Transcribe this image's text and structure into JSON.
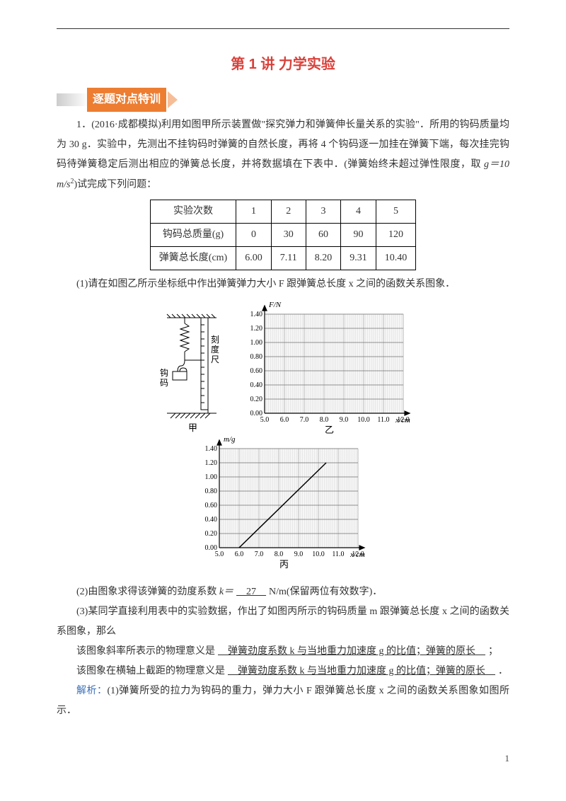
{
  "title": "第 1 讲  力学实验",
  "section": "逐题对点特训",
  "q1": {
    "num": "1．",
    "source": "(2016·成都模拟)",
    "text1": "利用如图甲所示装置做\"探究弹力和弹簧伸长量关系的实验\"．所用的钩码质量均为 30 g．实验中，先测出不挂钩码时弹簧的自然长度，再将 4 个钩码逐一加挂在弹簧下端，每次挂完钩码待弹簧稳定后测出相应的弹簧总长度，并将数据填在下表中．(弹簧始终未超过弹性限度，取 ",
    "g_expr": "g＝10 m/s",
    "text1b": ")试完成下列问题：",
    "table": {
      "headers": [
        "实验次数",
        "1",
        "2",
        "3",
        "4",
        "5"
      ],
      "row1": [
        "钩码总质量(g)",
        "0",
        "30",
        "60",
        "90",
        "120"
      ],
      "row2": [
        "弹簧总长度(cm)",
        "6.00",
        "7.11",
        "8.20",
        "9.31",
        "10.40"
      ]
    },
    "part1": "(1)请在如图乙所示坐标纸中作出弹簧弹力大小 F 跟弹簧总长度 x 之间的函数关系图象．",
    "fig_jia": "甲",
    "fig_yi": "乙",
    "fig_bing": "丙",
    "axis_y1": "F/N",
    "axis_y2": "m/g",
    "axis_x": "x/cm",
    "yticks": [
      "0.00",
      "0.20",
      "0.40",
      "0.60",
      "0.80",
      "1.00",
      "1.20",
      "1.40"
    ],
    "xticks": [
      "5.0",
      "6.0",
      "7.0",
      "8.0",
      "9.0",
      "10.0",
      "11.0",
      "12.0"
    ],
    "apparatus": {
      "gou": "钩",
      "ma": "码",
      "ke": "刻",
      "du": "度",
      "chi": "尺"
    },
    "part2a": "(2)由图象求得该弹簧的劲度系数 ",
    "part2k": "k＝",
    "blank2": "　27　",
    "part2b": "N/m(保留两位有效数字)．",
    "part3a": "(3)某同学直接利用表中的实验数据，作出了如图丙所示的钩码质量 m 跟弹簧总长度 x 之间的函数关系图象，那么",
    "part3b": "该图象斜率所表示的物理意义是",
    "blank3": "　弹簧劲度系数 k 与当地重力加速度 g 的比值；弹簧的原长　",
    "part3c": "；",
    "part3d": "该图象在横轴上截距的物理意义是",
    "blank4": "　弹簧劲度系数 k 与当地重力加速度 g 的比值；弹簧的原长　",
    "part3e": "．",
    "sol_label": "解析：",
    "sol1": "(1)弹簧所受的拉力为钩码的重力，弹力大小 F 跟弹簧总长度 x 之间的函数关系图象如图所示．"
  },
  "pagenum": "1",
  "style": {
    "title_color": "#d9413a",
    "section_bg": "#ed7d31",
    "blue": "#3b6fb6",
    "grid": "#999",
    "grid_minor": "#ccc"
  }
}
